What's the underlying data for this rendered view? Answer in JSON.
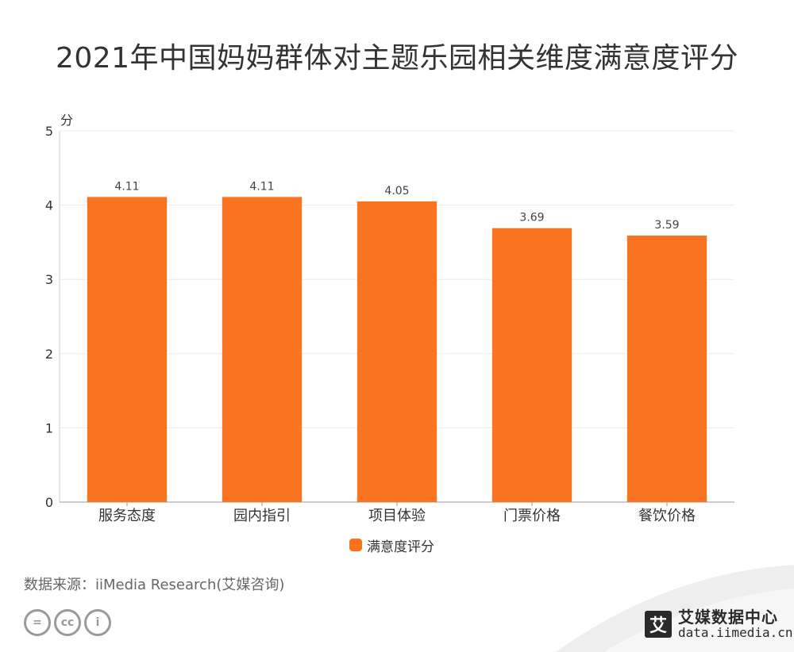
{
  "title": "2021年中国妈妈群体对主题乐园相关维度满意度评分",
  "chart_data": {
    "type": "bar",
    "title": "2021年中国妈妈群体对主题乐园相关维度满意度评分",
    "xlabel": "",
    "ylabel": "分",
    "categories": [
      "服务态度",
      "园内指引",
      "项目体验",
      "门票价格",
      "餐饮价格"
    ],
    "series": [
      {
        "name": "满意度评分",
        "values": [
          4.11,
          4.11,
          4.05,
          3.69,
          3.59
        ],
        "color": "#F97320"
      }
    ],
    "value_labels": [
      "4.11",
      "4.11",
      "4.05",
      "3.69",
      "3.59"
    ],
    "ylim": [
      0,
      5
    ],
    "yticks": [
      "0",
      "1",
      "2",
      "3",
      "4",
      "5"
    ],
    "grid": true,
    "legend": "bottom-center"
  },
  "legend_label": "满意度评分",
  "unit_label": "分",
  "source": "数据来源：iiMedia Research(艾媒咨询)",
  "brand": {
    "logo_char": "艾",
    "name": "艾媒数据中心",
    "url": "data.iimedia.cn"
  },
  "license_icons": [
    "=",
    "cc",
    "i"
  ]
}
